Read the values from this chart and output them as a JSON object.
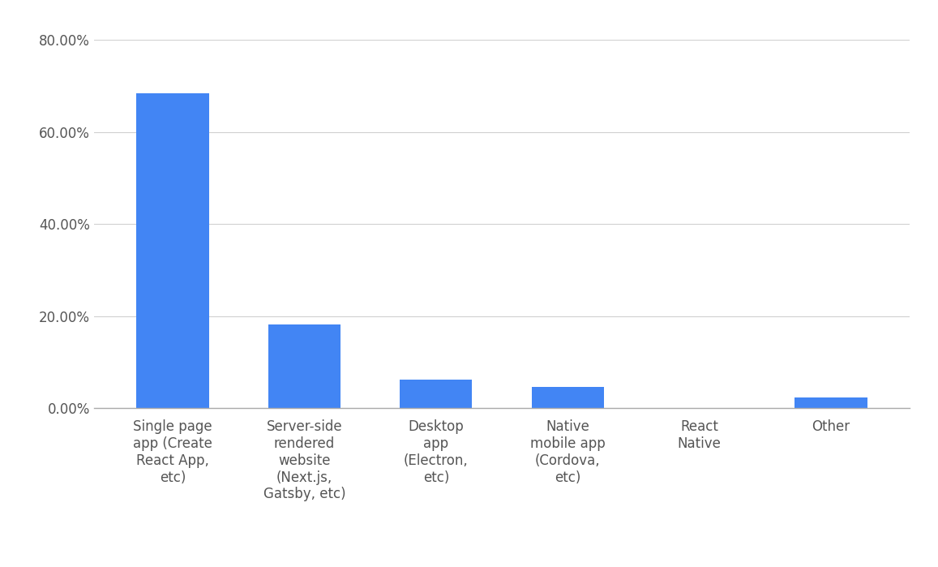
{
  "categories": [
    "Single page\napp (Create\nReact App,\netc)",
    "Server-side\nrendered\nwebsite\n(Next.js,\nGatsby, etc)",
    "Desktop\napp\n(Electron,\netc)",
    "Native\nmobile app\n(Cordova,\netc)",
    "React\nNative",
    "Other"
  ],
  "values": [
    68.37,
    18.24,
    6.22,
    4.65,
    0.1,
    2.4
  ],
  "bar_color": "#4285F4",
  "background_color": "#ffffff",
  "ylim": [
    0,
    80
  ],
  "yticks": [
    0,
    20,
    40,
    60,
    80
  ],
  "ytick_labels": [
    "0.00%",
    "20.00%",
    "40.00%",
    "60.00%",
    "80.00%"
  ],
  "grid_color": "#d0d0d0",
  "tick_label_fontsize": 12,
  "axis_label_color": "#555555",
  "bar_width": 0.55
}
